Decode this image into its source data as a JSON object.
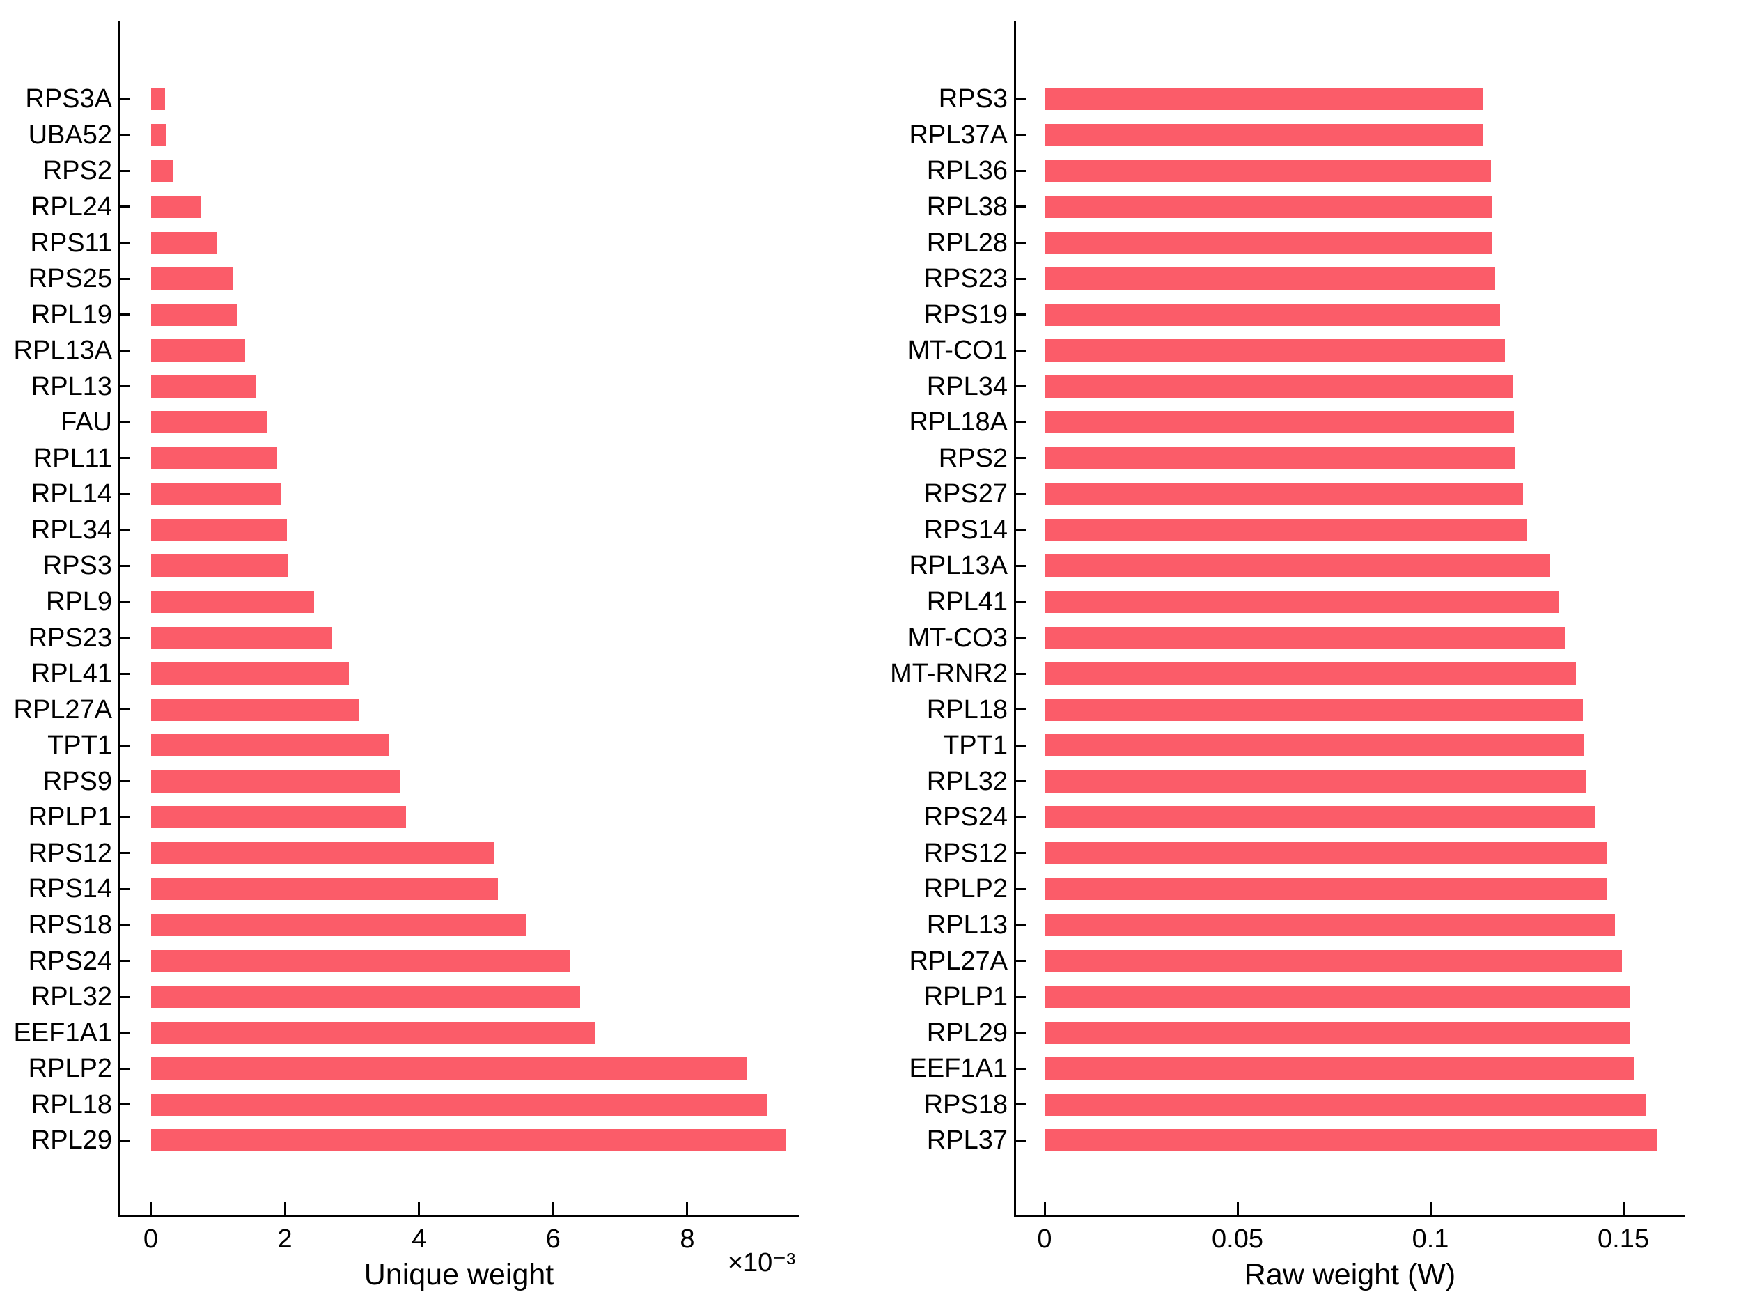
{
  "figure": {
    "background": "#ffffff",
    "bar_color": "#FB5C69",
    "axis_color": "#000000",
    "text_color": "#000000"
  },
  "chart_data": [
    {
      "type": "bar",
      "orientation": "horizontal",
      "title": "",
      "xlabel": "Unique weight",
      "exponent": "×10⁻³",
      "grid": false,
      "legend": "none",
      "xlim": [
        0,
        0.00966
      ],
      "xticks": {
        "values": [
          0,
          0.002,
          0.004,
          0.006,
          0.008
        ],
        "labels": [
          "0",
          "2",
          "4",
          "6",
          "8"
        ]
      },
      "categories": [
        "RPS3A",
        "UBA52",
        "RPS2",
        "RPL24",
        "RPS11",
        "RPS25",
        "RPL19",
        "RPL13A",
        "RPL13",
        "FAU",
        "RPL11",
        "RPL14",
        "RPL34",
        "RPS3",
        "RPL9",
        "RPS23",
        "RPL41",
        "RPL27A",
        "TPT1",
        "RPS9",
        "RPLP1",
        "RPS12",
        "RPS14",
        "RPS18",
        "RPS24",
        "RPL32",
        "EEF1A1",
        "RPLP2",
        "RPL18",
        "RPL29"
      ],
      "values": [
        0.00021,
        0.00022,
        0.00034,
        0.00075,
        0.00098,
        0.00122,
        0.00129,
        0.00141,
        0.00156,
        0.00174,
        0.00188,
        0.00195,
        0.00203,
        0.00205,
        0.00243,
        0.00271,
        0.00295,
        0.00311,
        0.00356,
        0.00371,
        0.00381,
        0.00512,
        0.00518,
        0.00559,
        0.00625,
        0.0064,
        0.00662,
        0.00888,
        0.00919,
        0.00948
      ]
    },
    {
      "type": "bar",
      "orientation": "horizontal",
      "title": "",
      "xlabel": "Raw weight (W)",
      "exponent": "",
      "grid": false,
      "legend": "none",
      "xlim": [
        0,
        0.1665
      ],
      "xticks": {
        "values": [
          0,
          0.05,
          0.1,
          0.15
        ],
        "labels": [
          "0",
          "0.05",
          "0.1",
          "0.15"
        ]
      },
      "categories": [
        "RPS3",
        "RPL37A",
        "RPL36",
        "RPL38",
        "RPL28",
        "RPS23",
        "RPS19",
        "MT-CO1",
        "RPL34",
        "RPL18A",
        "RPS2",
        "RPS27",
        "RPS14",
        "RPL13A",
        "RPL41",
        "MT-CO3",
        "MT-RNR2",
        "RPL18",
        "TPT1",
        "RPL32",
        "RPS24",
        "RPS12",
        "RPLP2",
        "RPL13",
        "RPL27A",
        "RPLP1",
        "RPL29",
        "EEF1A1",
        "RPS18",
        "RPL37"
      ],
      "values": [
        0.1136,
        0.1137,
        0.1157,
        0.1158,
        0.116,
        0.1168,
        0.1181,
        0.1193,
        0.1213,
        0.1216,
        0.1221,
        0.124,
        0.1251,
        0.1311,
        0.1334,
        0.1348,
        0.1378,
        0.1395,
        0.1398,
        0.1403,
        0.1428,
        0.1458,
        0.1459,
        0.1478,
        0.1497,
        0.1516,
        0.1518,
        0.1527,
        0.156,
        0.1588
      ]
    }
  ]
}
